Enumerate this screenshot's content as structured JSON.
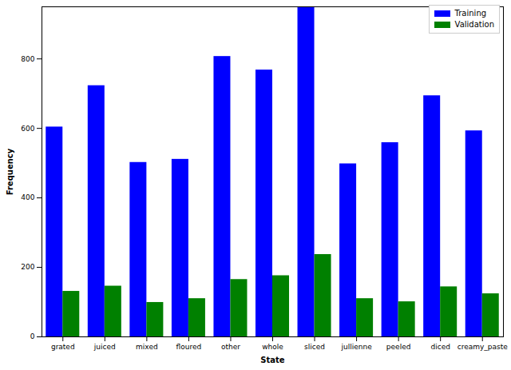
{
  "chart_data": {
    "type": "bar",
    "x_label": "State",
    "y_label": "Frequency",
    "categories": [
      "grated",
      "juiced",
      "mixed",
      "floured",
      "other",
      "whole",
      "sliced",
      "jullienne",
      "peeled",
      "diced",
      "creamy_paste"
    ],
    "series": [
      {
        "name": "Training",
        "color": "#0000ff",
        "values": [
          604,
          723,
          502,
          511,
          807,
          768,
          950,
          498,
          559,
          694,
          593
        ]
      },
      {
        "name": "Validation",
        "color": "#008000",
        "values": [
          131,
          146,
          99,
          110,
          165,
          176,
          237,
          110,
          101,
          144,
          124
        ]
      }
    ],
    "ylim": [
      0,
      950
    ],
    "yticks": [
      0,
      200,
      400,
      600,
      800
    ],
    "legend": "upper right"
  }
}
